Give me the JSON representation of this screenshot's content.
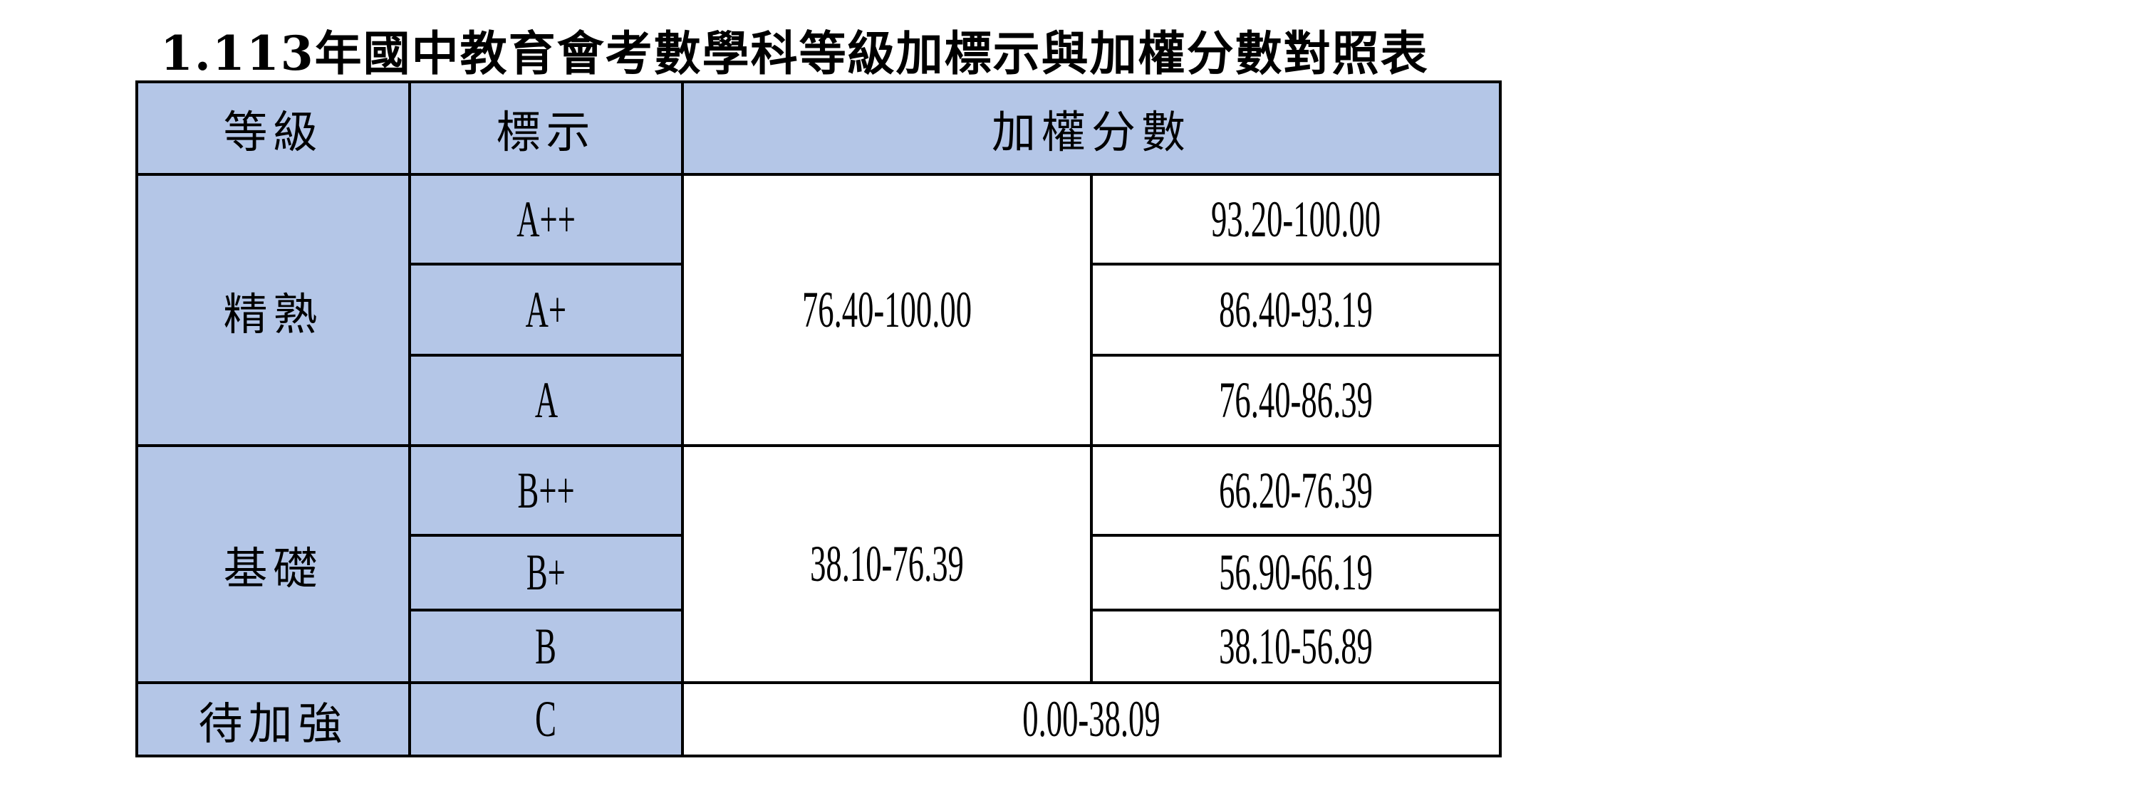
{
  "title": "1.113年國中教育會考數學科等級加標示與加權分數對照表",
  "colors": {
    "header_bg": "#b4c6e7",
    "border": "#000000"
  },
  "table": {
    "headers": [
      "等級",
      "標示",
      "加權分數"
    ],
    "levels": [
      {
        "level": "精熟",
        "range": "76.40-100.00",
        "marks": [
          {
            "mark": "A++",
            "score": "93.20-100.00"
          },
          {
            "mark": "A+",
            "score": "86.40-93.19"
          },
          {
            "mark": "A",
            "score": "76.40-86.39"
          }
        ]
      },
      {
        "level": "基礎",
        "range": "38.10-76.39",
        "marks": [
          {
            "mark": "B++",
            "score": "66.20-76.39"
          },
          {
            "mark": "B+",
            "score": "56.90-66.19"
          },
          {
            "mark": "B",
            "score": "38.10-56.89"
          }
        ]
      },
      {
        "level": "待加強",
        "range": "0.00-38.09",
        "marks": [
          {
            "mark": "C"
          }
        ]
      }
    ]
  }
}
